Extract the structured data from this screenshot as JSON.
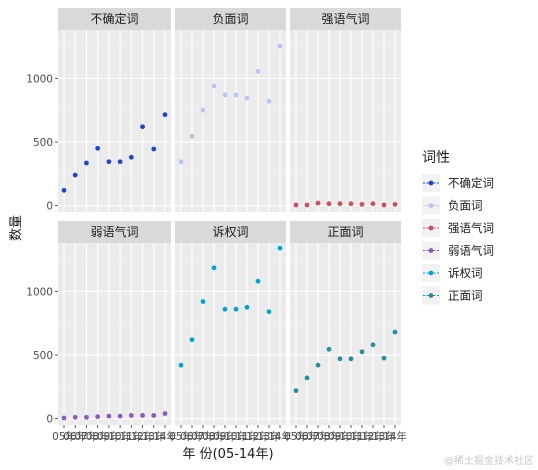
{
  "chart_data": {
    "type": "scatter",
    "facet_layout": "2x3",
    "xlabel": "年 份(05-14年)",
    "ylabel": "数量",
    "ylim": [
      -50,
      1380
    ],
    "yticks": [
      0,
      500,
      1000
    ],
    "x_ticks": [
      "05年",
      "06年",
      "07年",
      "08年",
      "09年",
      "10年",
      "11年",
      "12年",
      "13年",
      "14年"
    ],
    "legend": {
      "title": "词性",
      "placement": "right"
    },
    "grid": true,
    "series": [
      {
        "name": "不确定词",
        "color": "#1f45c8",
        "values": [
          120,
          240,
          335,
          450,
          345,
          345,
          380,
          620,
          445,
          715
        ]
      },
      {
        "name": "负面词",
        "color": "#b9c5f5",
        "values": [
          345,
          545,
          750,
          940,
          870,
          870,
          845,
          1055,
          820,
          1255
        ]
      },
      {
        "name": "强语气词",
        "color": "#cc4c64",
        "values": [
          5,
          5,
          20,
          15,
          15,
          15,
          10,
          15,
          5,
          10
        ]
      },
      {
        "name": "弱语气词",
        "color": "#8a5bb8",
        "values": [
          5,
          10,
          10,
          15,
          20,
          20,
          25,
          25,
          25,
          40
        ]
      },
      {
        "name": "诉权词",
        "color": "#00a6d0",
        "values": [
          420,
          620,
          920,
          1185,
          860,
          860,
          875,
          1080,
          840,
          1340
        ]
      },
      {
        "name": "正面词",
        "color": "#2a8c9e",
        "values": [
          220,
          320,
          420,
          545,
          470,
          470,
          525,
          580,
          475,
          680
        ]
      }
    ]
  },
  "watermark": "@稀土掘金技术社区"
}
